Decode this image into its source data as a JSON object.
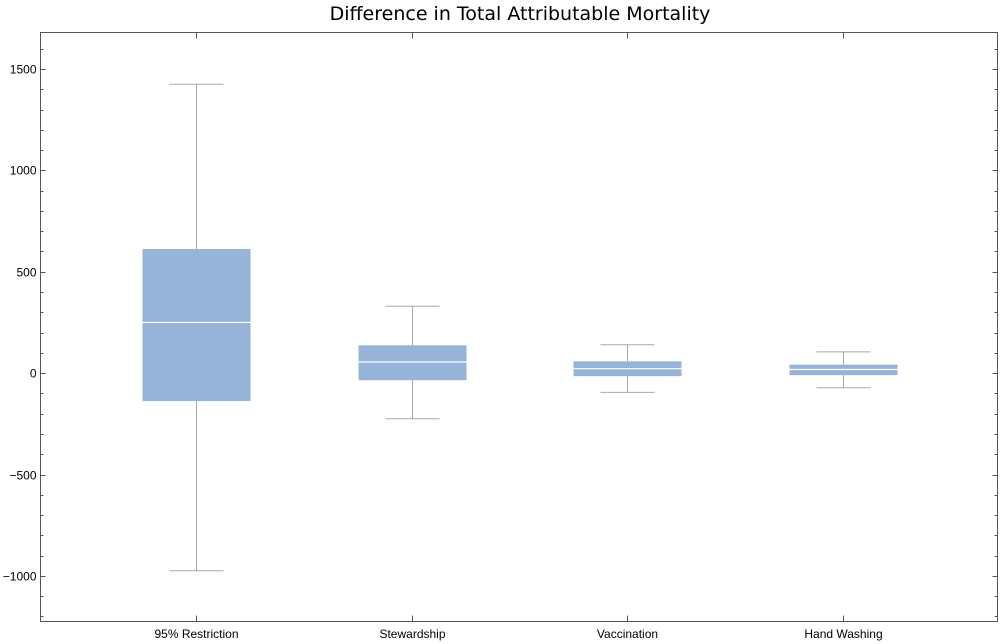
{
  "chart_data": {
    "type": "boxplot",
    "title": "Difference in Total Attributable Mortality",
    "xlabel": "",
    "ylabel": "",
    "ylim": [
      -1225,
      1680
    ],
    "yticks": [
      -1000,
      -500,
      0,
      500,
      1000,
      1500
    ],
    "ytick_labels": [
      "−1000",
      "−500",
      "0",
      "500",
      "1000",
      "1500"
    ],
    "categories": [
      "95% Restriction",
      "Stewardship",
      "Vaccination",
      "Hand Washing"
    ],
    "series": [
      {
        "values": [
          {
            "min": -975,
            "q1": -138,
            "median": 250,
            "q3": 612,
            "max": 1425
          },
          {
            "min": -225,
            "q1": -35,
            "median": 55,
            "q3": 137,
            "max": 330
          },
          {
            "min": -95,
            "q1": -15,
            "median": 22,
            "q3": 58,
            "max": 140
          },
          {
            "min": -72,
            "q1": -10,
            "median": 18,
            "q3": 42,
            "max": 105
          }
        ]
      }
    ],
    "box_color": "#96b4d8",
    "whisker_color": "#a8a8a8",
    "grid": false
  }
}
